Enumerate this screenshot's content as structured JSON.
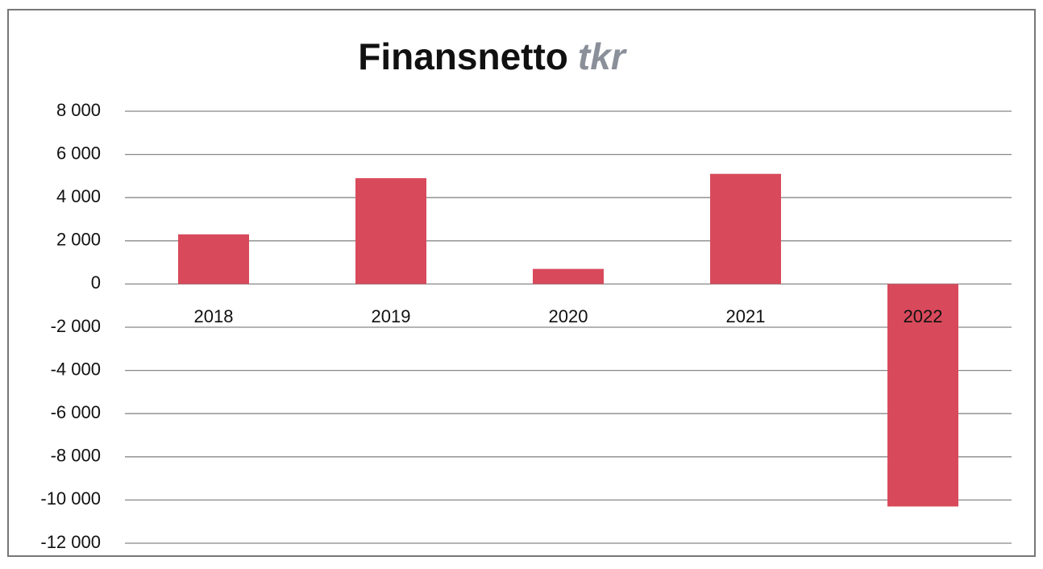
{
  "chart_data": {
    "type": "bar",
    "title": "Finansnetto",
    "unit": "tkr",
    "categories": [
      "2018",
      "2019",
      "2020",
      "2021",
      "2022"
    ],
    "values": [
      2300,
      4900,
      700,
      5100,
      -10300
    ],
    "color": "#d84a5b",
    "ylim": [
      -12000,
      8000
    ],
    "yticks": [
      {
        "value": -12000,
        "label": "-12 000"
      },
      {
        "value": -10000,
        "label": "-10 000"
      },
      {
        "value": -8000,
        "label": "-8 000"
      },
      {
        "value": -6000,
        "label": "-6 000"
      },
      {
        "value": -4000,
        "label": "-4 000"
      },
      {
        "value": -2000,
        "label": "-2 000"
      },
      0,
      {
        "value": 2000,
        "label": "2 000"
      },
      {
        "value": 4000,
        "label": "4 000"
      },
      {
        "value": 6000,
        "label": "6 000"
      },
      {
        "value": 8000,
        "label": "8 000"
      }
    ],
    "grid": true
  }
}
